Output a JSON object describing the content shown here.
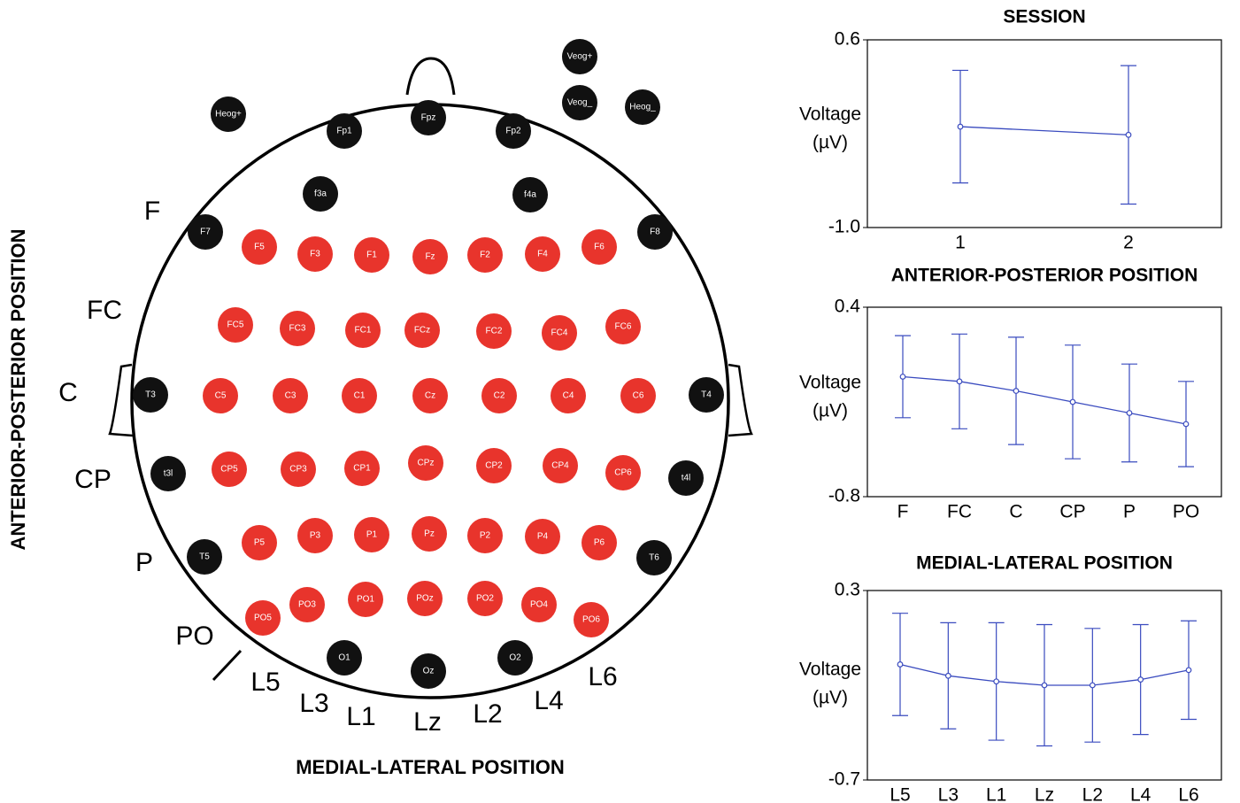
{
  "montage": {
    "x_axis_title": "MEDIAL-LATERAL POSITION",
    "y_axis_title": "ANTERIOR-POSTERIOR POSITION",
    "row_labels": [
      "F",
      "FC",
      "C",
      "CP",
      "P",
      "PO"
    ],
    "column_labels": [
      "L5",
      "L3",
      "L1",
      "Lz",
      "L2",
      "L4",
      "L6"
    ],
    "electrodes": [
      {
        "label": "Heog+",
        "color": "#111111"
      },
      {
        "label": "Fp1",
        "color": "#111111"
      },
      {
        "label": "Fpz",
        "color": "#111111"
      },
      {
        "label": "Fp2",
        "color": "#111111"
      },
      {
        "label": "Veog+",
        "color": "#111111"
      },
      {
        "label": "Veog_",
        "color": "#111111"
      },
      {
        "label": "Heog_",
        "color": "#111111"
      },
      {
        "label": "f3a",
        "color": "#111111"
      },
      {
        "label": "f4a",
        "color": "#111111"
      },
      {
        "label": "F7",
        "color": "#111111"
      },
      {
        "label": "F8",
        "color": "#111111"
      },
      {
        "label": "T3",
        "color": "#111111"
      },
      {
        "label": "T4",
        "color": "#111111"
      },
      {
        "label": "t3l",
        "color": "#111111"
      },
      {
        "label": "t4l",
        "color": "#111111"
      },
      {
        "label": "T5",
        "color": "#111111"
      },
      {
        "label": "T6",
        "color": "#111111"
      },
      {
        "label": "O1",
        "color": "#111111"
      },
      {
        "label": "Oz",
        "color": "#111111"
      },
      {
        "label": "O2",
        "color": "#111111"
      },
      {
        "label": "F5",
        "color": "#e8342c"
      },
      {
        "label": "F3",
        "color": "#e8342c"
      },
      {
        "label": "F1",
        "color": "#e8342c"
      },
      {
        "label": "Fz",
        "color": "#e8342c"
      },
      {
        "label": "F2",
        "color": "#e8342c"
      },
      {
        "label": "F4",
        "color": "#e8342c"
      },
      {
        "label": "F6",
        "color": "#e8342c"
      },
      {
        "label": "FC5",
        "color": "#e8342c"
      },
      {
        "label": "FC3",
        "color": "#e8342c"
      },
      {
        "label": "FC1",
        "color": "#e8342c"
      },
      {
        "label": "FCz",
        "color": "#e8342c"
      },
      {
        "label": "FC2",
        "color": "#e8342c"
      },
      {
        "label": "FC4",
        "color": "#e8342c"
      },
      {
        "label": "FC6",
        "color": "#e8342c"
      },
      {
        "label": "C5",
        "color": "#e8342c"
      },
      {
        "label": "C3",
        "color": "#e8342c"
      },
      {
        "label": "C1",
        "color": "#e8342c"
      },
      {
        "label": "Cz",
        "color": "#e8342c"
      },
      {
        "label": "C2",
        "color": "#e8342c"
      },
      {
        "label": "C4",
        "color": "#e8342c"
      },
      {
        "label": "C6",
        "color": "#e8342c"
      },
      {
        "label": "CP5",
        "color": "#e8342c"
      },
      {
        "label": "CP3",
        "color": "#e8342c"
      },
      {
        "label": "CP1",
        "color": "#e8342c"
      },
      {
        "label": "CPz",
        "color": "#e8342c"
      },
      {
        "label": "CP2",
        "color": "#e8342c"
      },
      {
        "label": "CP4",
        "color": "#e8342c"
      },
      {
        "label": "CP6",
        "color": "#e8342c"
      },
      {
        "label": "P5",
        "color": "#e8342c"
      },
      {
        "label": "P3",
        "color": "#e8342c"
      },
      {
        "label": "P1",
        "color": "#e8342c"
      },
      {
        "label": "Pz",
        "color": "#e8342c"
      },
      {
        "label": "P2",
        "color": "#e8342c"
      },
      {
        "label": "P4",
        "color": "#e8342c"
      },
      {
        "label": "P6",
        "color": "#e8342c"
      },
      {
        "label": "PO5",
        "color": "#e8342c"
      },
      {
        "label": "PO3",
        "color": "#e8342c"
      },
      {
        "label": "PO1",
        "color": "#e8342c"
      },
      {
        "label": "POz",
        "color": "#e8342c"
      },
      {
        "label": "PO2",
        "color": "#e8342c"
      },
      {
        "label": "PO4",
        "color": "#e8342c"
      },
      {
        "label": "PO6",
        "color": "#e8342c"
      }
    ]
  },
  "chart_data": [
    {
      "type": "line",
      "title": "SESSION",
      "ylabel": [
        "Voltage",
        "(µV)"
      ],
      "categories": [
        "1",
        "2"
      ],
      "values": [
        -0.14,
        -0.21
      ],
      "errors": [
        0.48,
        0.59
      ],
      "color": "#3a4bbf",
      "ylim": [
        -1.0,
        0.6
      ],
      "yticks": [
        {
          "value": -1.0,
          "label": "-1.0"
        },
        0.6
      ]
    },
    {
      "type": "line",
      "title": "ANTERIOR-POSTERIOR POSITION",
      "ylabel": [
        "Voltage",
        "(µV)"
      ],
      "categories": [
        "F",
        "FC",
        "C",
        "CP",
        "P",
        "PO"
      ],
      "values": [
        -0.04,
        -0.07,
        -0.13,
        -0.2,
        -0.27,
        -0.34
      ],
      "errors": [
        0.26,
        0.3,
        0.34,
        0.36,
        0.31,
        0.27
      ],
      "color": "#3a4bbf",
      "ylim": [
        -0.8,
        0.4
      ],
      "yticks": [
        -0.8,
        0.4
      ]
    },
    {
      "type": "line",
      "title": "MEDIAL-LATERAL POSITION",
      "ylabel": [
        "Voltage",
        "(µV)"
      ],
      "categories": [
        "L5",
        "L3",
        "L1",
        "Lz",
        "L2",
        "L4",
        "L6"
      ],
      "values": [
        -0.09,
        -0.15,
        -0.18,
        -0.2,
        -0.2,
        -0.17,
        -0.12
      ],
      "errors": [
        0.27,
        0.28,
        0.31,
        0.32,
        0.3,
        0.29,
        0.26
      ],
      "color": "#3a4bbf",
      "ylim": [
        -0.7,
        0.3
      ],
      "yticks": [
        -0.7,
        0.3
      ]
    }
  ]
}
